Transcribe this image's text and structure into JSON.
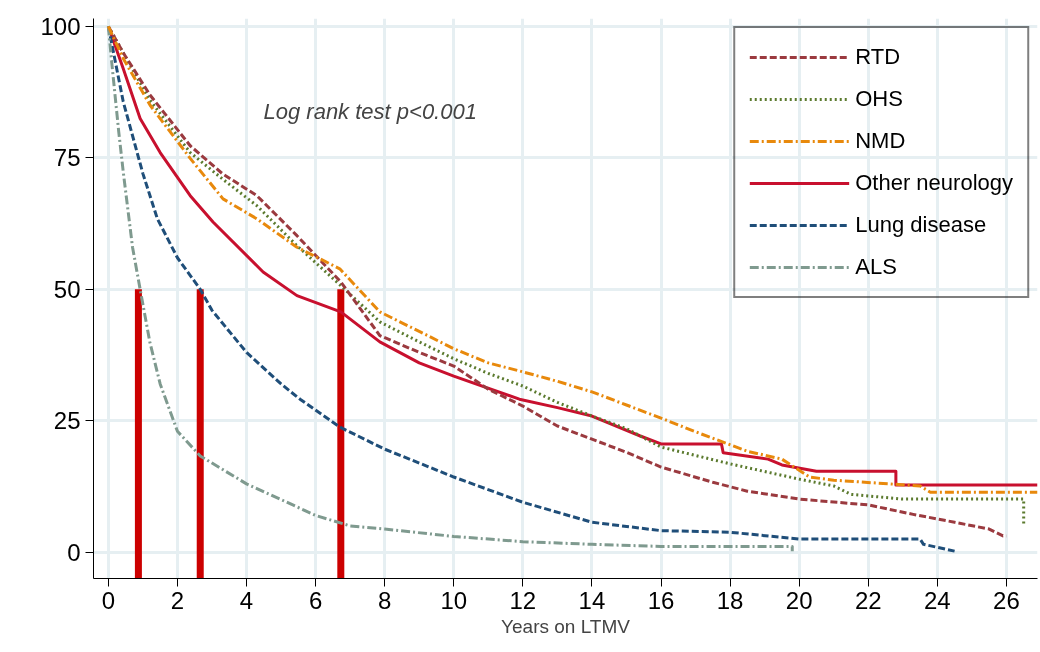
{
  "chart_data": {
    "type": "line",
    "xlabel": "Years on LTMV",
    "annotations": [
      "Log rank test p<0.001"
    ],
    "xlim": [
      -0.43,
      26.9
    ],
    "ylim": [
      -5,
      101.5
    ],
    "xticks": [
      0,
      2,
      4,
      6,
      8,
      10,
      12,
      14,
      16,
      18,
      20,
      22,
      24,
      26
    ],
    "yticks": [
      0,
      25,
      50,
      75,
      100
    ],
    "grid": true,
    "legend": "top right",
    "series": [
      {
        "name": "RTD",
        "color": "#9b3a3f",
        "line_style": "dashed",
        "x": [
          0,
          0.43,
          1.2,
          2.37,
          3.3,
          4.3,
          5.46,
          6.73,
          7.86,
          9,
          10,
          11,
          12,
          13,
          14,
          15,
          16,
          17.5,
          18.5,
          20,
          22,
          23.3,
          24.5,
          25.5,
          25.9,
          26
        ],
        "values": [
          100,
          95,
          87,
          77.3,
          72,
          67.8,
          60.2,
          51.4,
          41.2,
          38,
          35.4,
          31,
          27.8,
          24,
          21.5,
          19,
          16.2,
          13.3,
          11.6,
          10.1,
          9,
          7.2,
          5.7,
          4.4,
          3.1,
          3.1
        ]
      },
      {
        "name": "OHS",
        "color": "#5b7a2e",
        "line_style": "dotted",
        "x": [
          0,
          0.43,
          1.2,
          2.37,
          3.3,
          4.3,
          5.46,
          6.73,
          7.86,
          9,
          10,
          11,
          12,
          13,
          14,
          15,
          16,
          18,
          20,
          21,
          21.5,
          23,
          26.5,
          26.5
        ],
        "values": [
          100,
          95,
          86,
          76,
          71,
          65.9,
          58.3,
          50.7,
          43.8,
          40,
          36.8,
          34,
          31.6,
          28.5,
          25.9,
          23.5,
          20,
          16.8,
          13.9,
          12.6,
          11,
          10.1,
          10.1,
          5.3
        ]
      },
      {
        "name": "NMD",
        "color": "#e8890c",
        "line_style": "dashdot",
        "x": [
          0,
          0.43,
          1.21,
          2.37,
          3.32,
          4.3,
          5.46,
          6.7,
          7.86,
          9,
          10,
          11,
          12,
          13,
          14,
          15,
          16,
          17,
          18.5,
          19.5,
          20.3,
          21,
          23.5,
          23.8,
          26.9
        ],
        "values": [
          100,
          93.9,
          85,
          74.9,
          67.2,
          63.4,
          58,
          53.9,
          45.7,
          42,
          38.7,
          36,
          34.3,
          32.5,
          30.5,
          28,
          25.5,
          22.9,
          19.2,
          17.7,
          14.3,
          13.7,
          12.6,
          11.4,
          11.4
        ]
      },
      {
        "name": "Other neurology",
        "color": "#c8102e",
        "line_style": "solid",
        "x": [
          0,
          0.43,
          0.92,
          1.5,
          2.37,
          3.03,
          4.48,
          5.46,
          6.73,
          7.86,
          9,
          10,
          11.9,
          13,
          14,
          15.4,
          16,
          17.75,
          17.8,
          19.1,
          19.5,
          20.5,
          22.8,
          22.8,
          26.9
        ],
        "values": [
          100,
          92,
          82.5,
          76,
          67.8,
          62.8,
          53.3,
          48.8,
          45.7,
          40,
          36,
          33.5,
          29.1,
          27.5,
          25.9,
          22.1,
          20.6,
          20.6,
          18.9,
          17.7,
          16.6,
          15.4,
          15.4,
          12.8,
          12.8
        ]
      },
      {
        "name": "Lung disease",
        "color": "#1f4e79",
        "line_style": "dashed",
        "x": [
          0,
          0.43,
          1,
          1.42,
          2,
          2.66,
          3,
          4,
          5,
          5.55,
          6.7,
          8,
          10,
          12,
          14,
          16,
          18,
          20,
          23.5,
          23.6,
          24.5
        ],
        "values": [
          100,
          85.7,
          72,
          63.4,
          56,
          50,
          46,
          38,
          32,
          29.1,
          23.8,
          19.6,
          14.3,
          9.5,
          5.7,
          4.1,
          3.8,
          2.5,
          2.5,
          1.5,
          0.2
        ]
      },
      {
        "name": "ALS",
        "color": "#7f9a8f",
        "line_style": "dashdot",
        "x": [
          0,
          0.1,
          0.3,
          0.43,
          0.7,
          0.92,
          1.2,
          1.5,
          2,
          2.66,
          4,
          6,
          7,
          8,
          10,
          12,
          14,
          16,
          19.8,
          19.8
        ],
        "values": [
          100,
          93,
          80,
          72.4,
          58,
          50,
          40,
          32,
          23,
          18.3,
          13,
          7,
          5,
          4.4,
          3,
          2,
          1.5,
          1.1,
          1.1,
          0.2
        ]
      },
      {
        "color": "#cc0000",
        "line_style": "solid",
        "x": [
          0.87,
          0.87
        ],
        "values": [
          -5,
          50
        ]
      },
      {
        "color": "#cc0000",
        "line_style": "solid",
        "x": [
          2.66,
          2.66
        ],
        "values": [
          -5,
          50
        ]
      },
      {
        "color": "#cc0000",
        "line_style": "solid",
        "x": [
          6.73,
          6.73
        ],
        "values": [
          -5,
          50
        ]
      }
    ]
  }
}
